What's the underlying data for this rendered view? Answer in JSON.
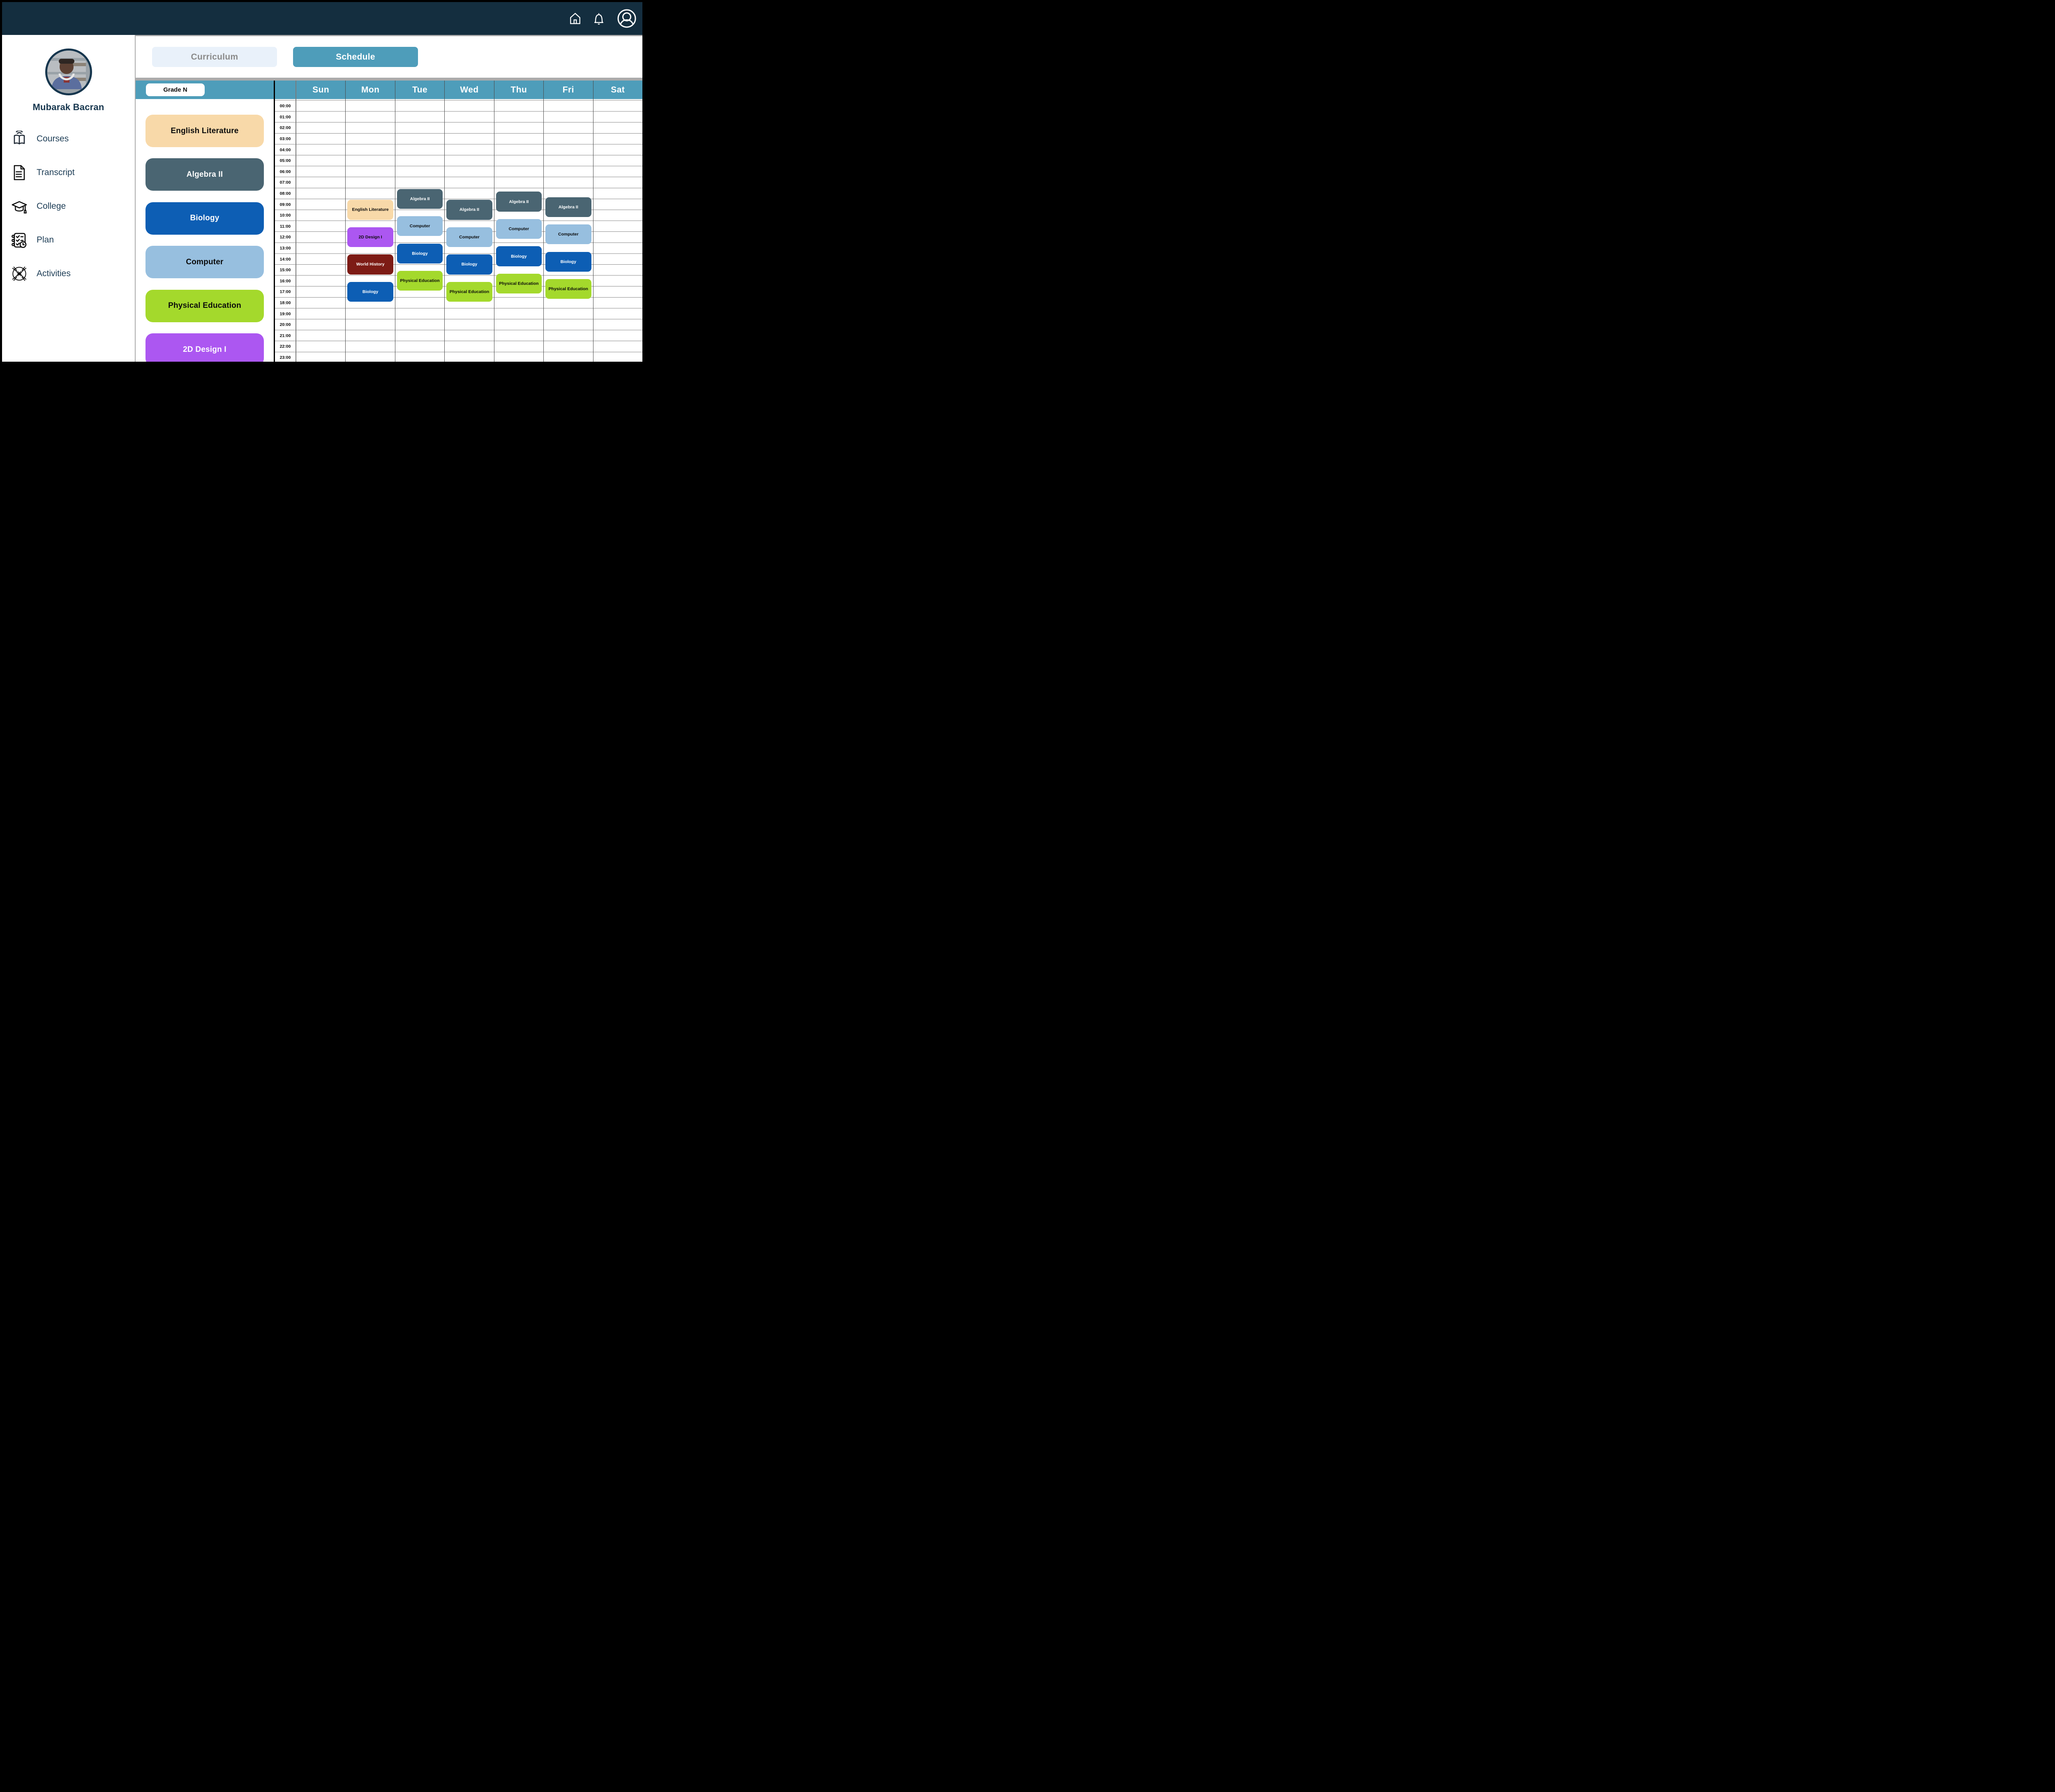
{
  "top_bar": {
    "icons": [
      {
        "name": "home-icon"
      },
      {
        "name": "notifications-bell-icon"
      },
      {
        "name": "profile-icon"
      }
    ],
    "background": "#142E3F"
  },
  "sidebar": {
    "profile_name": "Mubarak Bacran",
    "menu": [
      {
        "label": "Courses",
        "icon": "courses-book-icon"
      },
      {
        "label": "Transcript",
        "icon": "transcript-document-icon"
      },
      {
        "label": "College",
        "icon": "college-graduation-cap-icon"
      },
      {
        "label": "Plan",
        "icon": "plan-checklist-icon"
      },
      {
        "label": "Activities",
        "icon": "activities-hands-icon"
      }
    ]
  },
  "tabs": {
    "curriculum_label": "Curriculum",
    "schedule_label": "Schedule",
    "active": "Schedule"
  },
  "schedule": {
    "grade_label": "Grade N",
    "days": [
      "Sun",
      "Mon",
      "Tue",
      "Wed",
      "Thu",
      "Fri",
      "Sat"
    ],
    "hours": [
      "00:00",
      "01:00",
      "02:00",
      "03:00",
      "04:00",
      "05:00",
      "06:00",
      "07:00",
      "08:00",
      "09:00",
      "10:00",
      "11:00",
      "12:00",
      "13:00",
      "14:00",
      "15:00",
      "16:00",
      "17:00",
      "18:00",
      "19:00",
      "20:00",
      "21:00",
      "22:00",
      "23:00"
    ],
    "palette": {
      "English Literature": {
        "bg": "#F8D9A9",
        "chip_text": "#0a0a0a",
        "event_text": "#0a0a0a"
      },
      "Algebra II": {
        "bg": "#4A6572",
        "chip_text": "#ffffff",
        "event_text": "#ffffff"
      },
      "Biology": {
        "bg": "#0D5EB4",
        "chip_text": "#ffffff",
        "event_text": "#ffffff"
      },
      "Computer": {
        "bg": "#97BFDF",
        "chip_text": "#0a0a0a",
        "event_text": "#0a0a0a"
      },
      "Physical Education": {
        "bg": "#A4D92C",
        "chip_text": "#0a0a0a",
        "event_text": "#0a0a0a"
      },
      "2D Design I": {
        "bg": "#AC57F1",
        "chip_text": "#ffffff",
        "event_text": "#0a0a0a"
      },
      "World History": {
        "bg": "#7D1B15",
        "chip_text": "#ffffff",
        "event_text": "#ffffff"
      }
    },
    "course_chips": [
      "English Literature",
      "Algebra II",
      "Biology",
      "Computer",
      "Physical Education",
      "2D Design I"
    ],
    "events": [
      {
        "day": "Mon",
        "title": "English Literature",
        "start": 9,
        "end": 11
      },
      {
        "day": "Mon",
        "title": "2D Design I",
        "start": 11.5,
        "end": 13.5
      },
      {
        "day": "Mon",
        "title": "World History",
        "start": 14,
        "end": 16
      },
      {
        "day": "Mon",
        "title": "Biology",
        "start": 16.5,
        "end": 18.5
      },
      {
        "day": "Tue",
        "title": "Algebra II",
        "start": 8,
        "end": 10
      },
      {
        "day": "Tue",
        "title": "Computer",
        "start": 10.5,
        "end": 12.5
      },
      {
        "day": "Tue",
        "title": "Biology",
        "start": 13,
        "end": 15
      },
      {
        "day": "Tue",
        "title": "Physical Education",
        "start": 15.5,
        "end": 17.5
      },
      {
        "day": "Wed",
        "title": "Algebra II",
        "start": 9,
        "end": 11
      },
      {
        "day": "Wed",
        "title": "Computer",
        "start": 11.5,
        "end": 13.5
      },
      {
        "day": "Wed",
        "title": "Biology",
        "start": 14,
        "end": 16
      },
      {
        "day": "Wed",
        "title": "Physical Education",
        "start": 16.5,
        "end": 18.5
      },
      {
        "day": "Thu",
        "title": "Algebra II",
        "start": 8.25,
        "end": 10.25
      },
      {
        "day": "Thu",
        "title": "Computer",
        "start": 10.75,
        "end": 12.75
      },
      {
        "day": "Thu",
        "title": "Biology",
        "start": 13.25,
        "end": 15.25
      },
      {
        "day": "Thu",
        "title": "Physical Education",
        "start": 15.75,
        "end": 17.75
      },
      {
        "day": "Fri",
        "title": "Algebra II",
        "start": 8.75,
        "end": 10.75
      },
      {
        "day": "Fri",
        "title": "Computer",
        "start": 11.25,
        "end": 13.25
      },
      {
        "day": "Fri",
        "title": "Biology",
        "start": 13.75,
        "end": 15.75
      },
      {
        "day": "Fri",
        "title": "Physical Education",
        "start": 16.25,
        "end": 18.25
      }
    ],
    "colors": {
      "header_teal": "#4E9DBA",
      "grid_hline": "#8a8a8a",
      "grid_vline": "#4a4a4a"
    }
  }
}
